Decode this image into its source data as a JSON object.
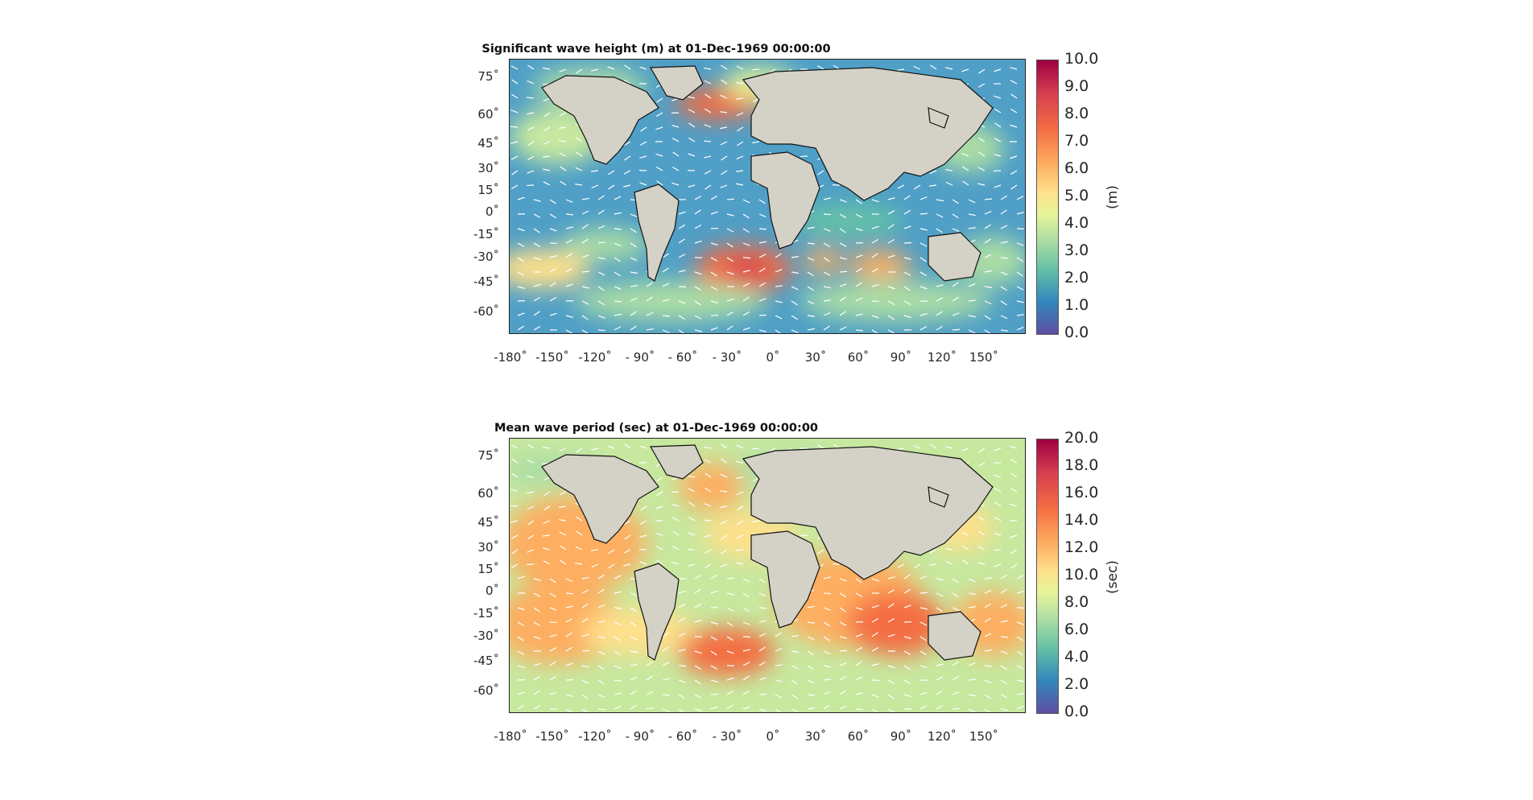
{
  "panels": [
    {
      "title": "Significant wave height (m) at 01-Dec-1969 00:00:00",
      "colorbar_unit": "(m)",
      "colorbar_ticks": [
        "10.0",
        "9.0",
        "8.0",
        "7.0",
        "6.0",
        "5.0",
        "4.0",
        "3.0",
        "2.0",
        "1.0",
        "0.0"
      ],
      "lat_ticks": [
        "75˚",
        "60˚",
        "45˚",
        "30˚",
        "15˚",
        "0˚",
        "-15˚",
        "-30˚",
        "-45˚",
        "-60˚"
      ],
      "lon_ticks": [
        "-180˚",
        "-150˚",
        "-120˚",
        "- 90˚",
        "- 60˚",
        "- 30˚",
        "0˚",
        "30˚",
        "60˚",
        "90˚",
        "120˚",
        "150˚"
      ]
    },
    {
      "title": "Mean wave period (sec) at 01-Dec-1969 00:00:00",
      "colorbar_unit": "(sec)",
      "colorbar_ticks": [
        "20.0",
        "18.0",
        "16.0",
        "14.0",
        "12.0",
        "10.0",
        "8.0",
        "6.0",
        "4.0",
        "2.0",
        "0.0"
      ],
      "lat_ticks": [
        "75˚",
        "60˚",
        "45˚",
        "30˚",
        "15˚",
        "0˚",
        "-15˚",
        "-30˚",
        "-45˚",
        "-60˚"
      ],
      "lon_ticks": [
        "-180˚",
        "-150˚",
        "-120˚",
        "- 90˚",
        "- 60˚",
        "- 30˚",
        "0˚",
        "30˚",
        "60˚",
        "90˚",
        "120˚",
        "150˚"
      ]
    }
  ],
  "colors": {
    "land": "#d4d1c6",
    "ocean_low": "#3a8fc4",
    "ocean_high": "#9e0142"
  }
}
